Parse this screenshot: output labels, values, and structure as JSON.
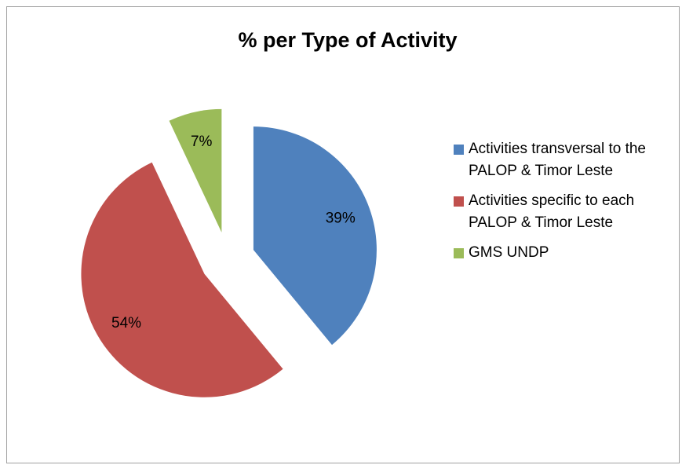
{
  "chart_data": {
    "type": "pie",
    "title": "% per Type of Activity",
    "categories": [
      "Activities transversal to the PALOP & Timor Leste",
      "Activities specific to each PALOP & Timor Leste",
      "GMS UNDP"
    ],
    "values": [
      39,
      54,
      7
    ],
    "value_labels": [
      "39%",
      "54%",
      "7%"
    ],
    "colors": [
      "#4f81bd",
      "#c0504d",
      "#9bbb59"
    ],
    "legend": "right"
  }
}
